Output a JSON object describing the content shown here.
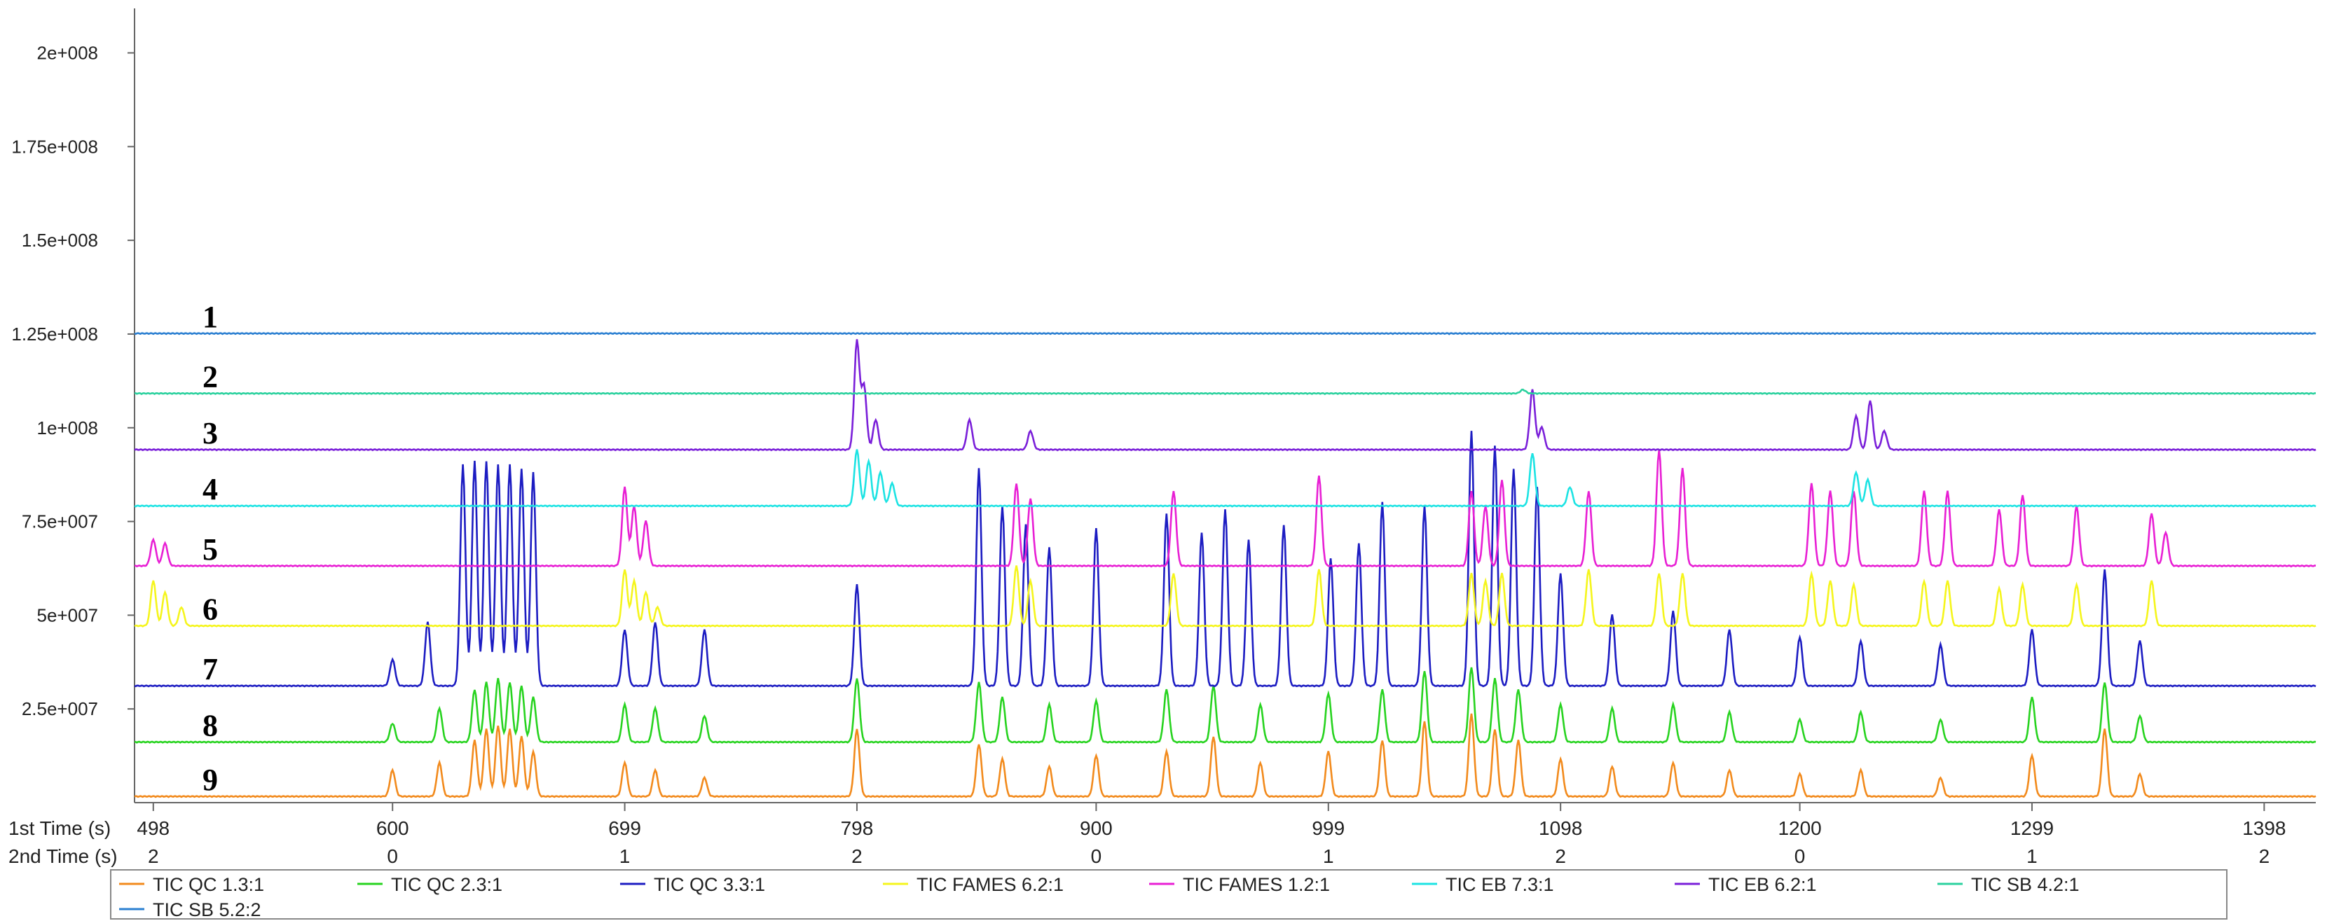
{
  "chart_data": {
    "type": "line",
    "title": "",
    "ylim": [
      0,
      210000000
    ],
    "y_ticks": [
      {
        "value": 200000000,
        "label": "2e+008"
      },
      {
        "value": 175000000,
        "label": "1.75e+008"
      },
      {
        "value": 150000000,
        "label": "1.5e+008"
      },
      {
        "value": 125000000,
        "label": "1.25e+008"
      },
      {
        "value": 100000000,
        "label": "1e+008"
      },
      {
        "value": 75000000,
        "label": "7.5e+007"
      },
      {
        "value": 50000000,
        "label": "5e+007"
      },
      {
        "value": 25000000,
        "label": "2.5e+007"
      }
    ],
    "xlim": [
      490,
      1420
    ],
    "x_axis_labels": [
      "1st Time (s)",
      "2nd Time (s)"
    ],
    "x_ticks": [
      {
        "t1": 498,
        "label1": "498",
        "label2": "2"
      },
      {
        "t1": 600,
        "label1": "600",
        "label2": "0"
      },
      {
        "t1": 699,
        "label1": "699",
        "label2": "1"
      },
      {
        "t1": 798,
        "label1": "798",
        "label2": "2"
      },
      {
        "t1": 900,
        "label1": "900",
        "label2": "0"
      },
      {
        "t1": 999,
        "label1": "999",
        "label2": "1"
      },
      {
        "t1": 1098,
        "label1": "1098",
        "label2": "2"
      },
      {
        "t1": 1200,
        "label1": "1200",
        "label2": "0"
      },
      {
        "t1": 1299,
        "label1": "1299",
        "label2": "1"
      },
      {
        "t1": 1398,
        "label1": "1398",
        "label2": "2"
      }
    ],
    "grid": false,
    "legend_position": "bottom",
    "series": [
      {
        "name": "TIC QC 1.3:1",
        "color": "#f28a1c",
        "baseline": 1500000,
        "label": "9",
        "peaks": [
          [
            600,
            7000000
          ],
          [
            620,
            9000000
          ],
          [
            635,
            15000000
          ],
          [
            640,
            18000000
          ],
          [
            645,
            19000000
          ],
          [
            650,
            18000000
          ],
          [
            655,
            16000000
          ],
          [
            660,
            12000000
          ],
          [
            699,
            9000000
          ],
          [
            712,
            7000000
          ],
          [
            733,
            5000000
          ],
          [
            798,
            18000000
          ],
          [
            850,
            14000000
          ],
          [
            860,
            10000000
          ],
          [
            880,
            8000000
          ],
          [
            900,
            11000000
          ],
          [
            930,
            12000000
          ],
          [
            950,
            16000000
          ],
          [
            970,
            9000000
          ],
          [
            999,
            12000000
          ],
          [
            1022,
            15000000
          ],
          [
            1040,
            20000000
          ],
          [
            1060,
            22000000
          ],
          [
            1070,
            18000000
          ],
          [
            1080,
            15000000
          ],
          [
            1098,
            10000000
          ],
          [
            1120,
            8000000
          ],
          [
            1146,
            9000000
          ],
          [
            1170,
            7000000
          ],
          [
            1200,
            6000000
          ],
          [
            1226,
            7000000
          ],
          [
            1260,
            5000000
          ],
          [
            1299,
            11000000
          ],
          [
            1330,
            18000000
          ],
          [
            1345,
            6000000
          ]
        ]
      },
      {
        "name": "TIC QC 2.3:1",
        "color": "#27d31f",
        "baseline": 16000000,
        "label": "8",
        "peaks": [
          [
            600,
            5000000
          ],
          [
            620,
            9000000
          ],
          [
            635,
            14000000
          ],
          [
            640,
            16000000
          ],
          [
            645,
            17000000
          ],
          [
            650,
            16000000
          ],
          [
            655,
            15000000
          ],
          [
            660,
            12000000
          ],
          [
            699,
            10000000
          ],
          [
            712,
            9000000
          ],
          [
            733,
            7000000
          ],
          [
            798,
            17000000
          ],
          [
            850,
            16000000
          ],
          [
            860,
            12000000
          ],
          [
            880,
            10000000
          ],
          [
            900,
            11000000
          ],
          [
            930,
            14000000
          ],
          [
            950,
            15000000
          ],
          [
            970,
            10000000
          ],
          [
            999,
            13000000
          ],
          [
            1022,
            14000000
          ],
          [
            1040,
            19000000
          ],
          [
            1060,
            20000000
          ],
          [
            1070,
            17000000
          ],
          [
            1080,
            14000000
          ],
          [
            1098,
            10000000
          ],
          [
            1120,
            9000000
          ],
          [
            1146,
            10000000
          ],
          [
            1170,
            8000000
          ],
          [
            1200,
            6000000
          ],
          [
            1226,
            8000000
          ],
          [
            1260,
            6000000
          ],
          [
            1299,
            12000000
          ],
          [
            1330,
            16000000
          ],
          [
            1345,
            7000000
          ]
        ]
      },
      {
        "name": "TIC QC 3.3:1",
        "color": "#1c1cc2",
        "baseline": 31000000,
        "label": "7",
        "peaks": [
          [
            600,
            7000000
          ],
          [
            615,
            17000000
          ],
          [
            630,
            59000000
          ],
          [
            635,
            60000000
          ],
          [
            640,
            60000000
          ],
          [
            645,
            59000000
          ],
          [
            650,
            59000000
          ],
          [
            655,
            58000000
          ],
          [
            660,
            57000000
          ],
          [
            699,
            15000000
          ],
          [
            712,
            17000000
          ],
          [
            733,
            15000000
          ],
          [
            798,
            27000000
          ],
          [
            850,
            58000000
          ],
          [
            860,
            48000000
          ],
          [
            870,
            43000000
          ],
          [
            880,
            37000000
          ],
          [
            900,
            42000000
          ],
          [
            930,
            46000000
          ],
          [
            945,
            41000000
          ],
          [
            955,
            47000000
          ],
          [
            965,
            39000000
          ],
          [
            980,
            43000000
          ],
          [
            1000,
            34000000
          ],
          [
            1012,
            38000000
          ],
          [
            1022,
            49000000
          ],
          [
            1040,
            48000000
          ],
          [
            1060,
            68000000
          ],
          [
            1070,
            64000000
          ],
          [
            1078,
            58000000
          ],
          [
            1088,
            53000000
          ],
          [
            1098,
            30000000
          ],
          [
            1120,
            19000000
          ],
          [
            1146,
            20000000
          ],
          [
            1170,
            15000000
          ],
          [
            1200,
            13000000
          ],
          [
            1226,
            12000000
          ],
          [
            1260,
            11000000
          ],
          [
            1299,
            15000000
          ],
          [
            1330,
            31000000
          ],
          [
            1345,
            12000000
          ]
        ]
      },
      {
        "name": "TIC FAMES 6.2:1",
        "color": "#f5f51c",
        "baseline": 47000000,
        "label": "6",
        "peaks": [
          [
            498,
            12000000
          ],
          [
            503,
            9000000
          ],
          [
            510,
            5000000
          ],
          [
            699,
            15000000
          ],
          [
            703,
            12000000
          ],
          [
            708,
            9000000
          ],
          [
            713,
            5000000
          ],
          [
            866,
            16000000
          ],
          [
            872,
            12000000
          ],
          [
            933,
            14000000
          ],
          [
            995,
            15000000
          ],
          [
            1060,
            14000000
          ],
          [
            1066,
            12000000
          ],
          [
            1073,
            14000000
          ],
          [
            1110,
            15000000
          ],
          [
            1140,
            14000000
          ],
          [
            1150,
            14000000
          ],
          [
            1205,
            14000000
          ],
          [
            1213,
            12000000
          ],
          [
            1223,
            11000000
          ],
          [
            1253,
            12000000
          ],
          [
            1263,
            12000000
          ],
          [
            1285,
            10000000
          ],
          [
            1295,
            11000000
          ],
          [
            1318,
            11000000
          ],
          [
            1350,
            12000000
          ]
        ]
      },
      {
        "name": "TIC FAMES 1.2:1",
        "color": "#e81fd4",
        "baseline": 63000000,
        "label": "5",
        "peaks": [
          [
            498,
            7000000
          ],
          [
            503,
            6000000
          ],
          [
            699,
            21000000
          ],
          [
            703,
            16000000
          ],
          [
            708,
            12000000
          ],
          [
            866,
            22000000
          ],
          [
            872,
            18000000
          ],
          [
            933,
            20000000
          ],
          [
            995,
            24000000
          ],
          [
            1060,
            20000000
          ],
          [
            1066,
            16000000
          ],
          [
            1073,
            23000000
          ],
          [
            1110,
            20000000
          ],
          [
            1140,
            31000000
          ],
          [
            1150,
            26000000
          ],
          [
            1205,
            22000000
          ],
          [
            1213,
            20000000
          ],
          [
            1223,
            20000000
          ],
          [
            1253,
            20000000
          ],
          [
            1263,
            20000000
          ],
          [
            1285,
            15000000
          ],
          [
            1295,
            19000000
          ],
          [
            1318,
            16000000
          ],
          [
            1350,
            14000000
          ],
          [
            1356,
            9000000
          ]
        ]
      },
      {
        "name": "TIC EB 7.3:1",
        "color": "#1ce3e3",
        "baseline": 79000000,
        "label": "4",
        "peaks": [
          [
            798,
            15000000
          ],
          [
            803,
            12000000
          ],
          [
            808,
            9000000
          ],
          [
            813,
            6000000
          ],
          [
            1086,
            14000000
          ],
          [
            1102,
            5000000
          ],
          [
            1224,
            9000000
          ],
          [
            1229,
            7000000
          ]
        ]
      },
      {
        "name": "TIC EB 6.2:1",
        "color": "#7a1fd9",
        "baseline": 94000000,
        "label": "3",
        "peaks": [
          [
            798,
            29000000
          ],
          [
            801,
            17000000
          ],
          [
            806,
            8000000
          ],
          [
            846,
            8000000
          ],
          [
            872,
            5000000
          ],
          [
            1086,
            16000000
          ],
          [
            1090,
            6000000
          ],
          [
            1224,
            9000000
          ],
          [
            1230,
            13000000
          ],
          [
            1236,
            5000000
          ]
        ]
      },
      {
        "name": "TIC SB 4.2:1",
        "color": "#2bd19e",
        "baseline": 109000000,
        "label": "2",
        "peaks": [
          [
            1082,
            1000000
          ]
        ]
      },
      {
        "name": "TIC SB 5.2:2",
        "color": "#2b7fd1",
        "baseline": 125000000,
        "label": "1",
        "peaks": []
      }
    ]
  }
}
